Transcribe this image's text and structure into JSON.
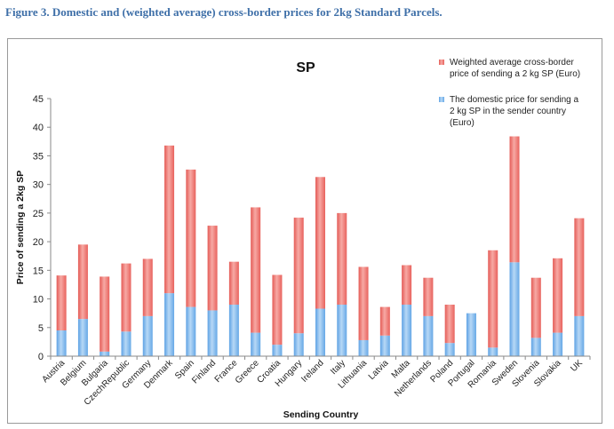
{
  "caption": "Figure 3. Domestic and (weighted average) cross-border prices for 2kg Standard Parcels.",
  "colors": {
    "cross_border": "#f08a86",
    "domestic": "#8fc0ec",
    "axis": "#8a8a8a",
    "caption": "#3e6fa8"
  },
  "chart_data": {
    "type": "bar",
    "stacked": true,
    "title": "SP",
    "xlabel": "Sending Country",
    "ylabel": "Price of sending a 2kg SP",
    "ylim": [
      0,
      45
    ],
    "yticks": [
      "0",
      "5",
      "10",
      "15",
      "20",
      "25",
      "30",
      "35",
      "40",
      "45"
    ],
    "legend_position": "top-right",
    "categories": [
      "Austria",
      "Belgium",
      "Bulgaria",
      "CzechRepublic",
      "Germany",
      "Denmark",
      "Spain",
      "Finland",
      "France",
      "Greece",
      "Croatia",
      "Hungary",
      "Ireland",
      "Italy",
      "Lithuania",
      "Latvia",
      "Malta",
      "Netherlands",
      "Poland",
      "Portugal",
      "Romania",
      "Sweden",
      "Slovenia",
      "Slovakia",
      "UK"
    ],
    "series": [
      {
        "name": "The domestic price for sending a 2 kg SP in the sender country (Euro)",
        "legend_lines": [
          "The domestic price for sending a",
          "2 kg SP in the sender country",
          "(Euro)"
        ],
        "values": [
          4.5,
          6.5,
          0.8,
          4.3,
          7.0,
          11.0,
          8.6,
          8.0,
          9.0,
          4.1,
          2.0,
          4.0,
          8.3,
          9.0,
          2.8,
          3.6,
          9.0,
          7.0,
          2.3,
          7.5,
          1.5,
          16.4,
          3.2,
          4.1,
          7.0
        ]
      },
      {
        "name": "Weighted average cross-border price of sending a 2 kg SP (Euro)",
        "legend_lines": [
          "Weighted average cross-border",
          "price of sending a 2 kg SP (Euro)"
        ],
        "values": [
          9.6,
          13.0,
          13.1,
          11.9,
          10.0,
          25.8,
          24.0,
          14.8,
          7.5,
          21.9,
          12.2,
          20.2,
          23.0,
          16.0,
          12.8,
          5.0,
          6.9,
          6.7,
          6.7,
          0.0,
          17.0,
          22.0,
          10.5,
          13.0,
          17.1
        ]
      }
    ]
  }
}
